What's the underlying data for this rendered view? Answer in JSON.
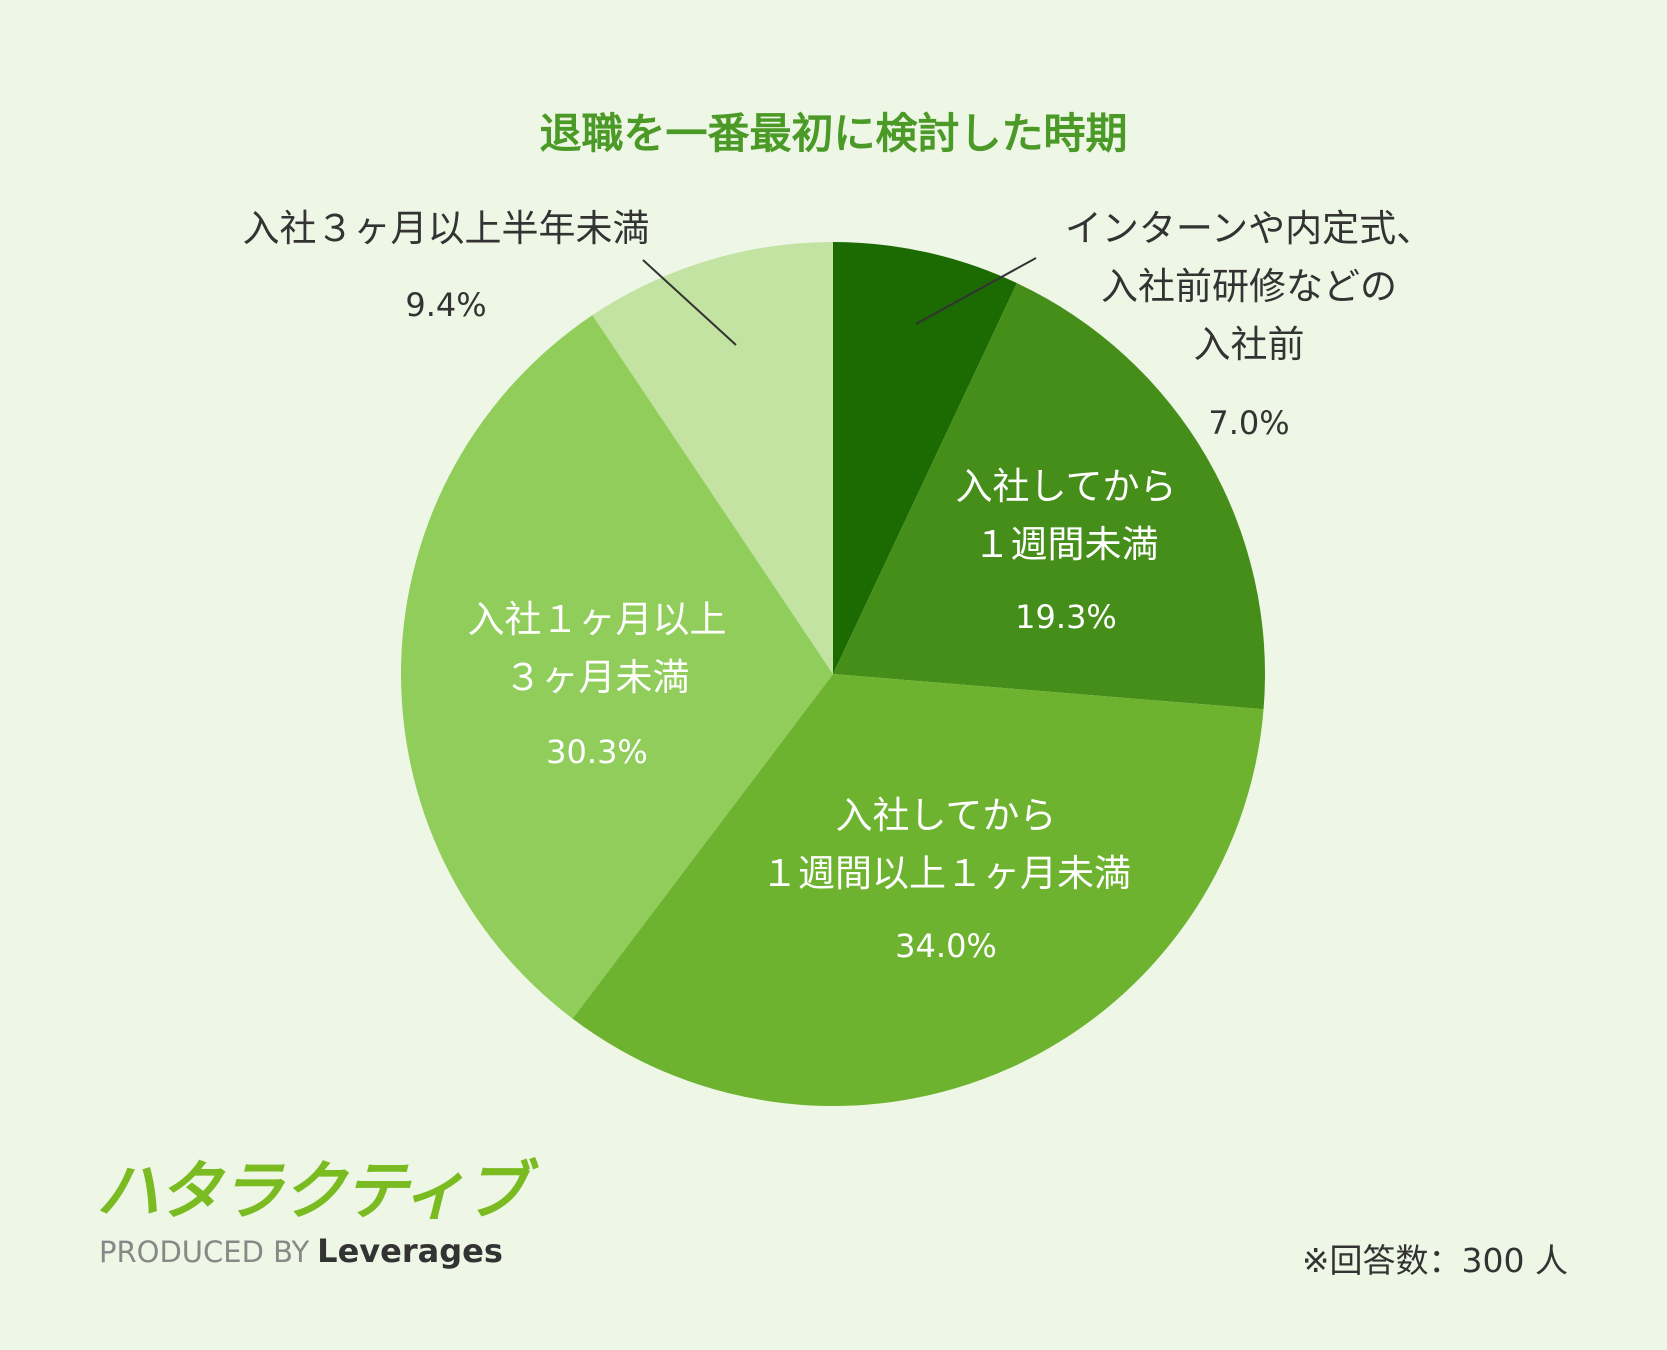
{
  "chart_data": {
    "type": "pie",
    "title": "退職を一番最初に検討した時期",
    "categories": [
      "インターンや内定式、\n入社前研修などの\n入社前",
      "入社してから\n１週間未満",
      "入社してから\n１週間以上１ヶ月未満",
      "入社１ヶ月以上\n３ヶ月未満",
      "入社３ヶ月以上半年未満"
    ],
    "values": [
      7.0,
      19.3,
      34.0,
      30.3,
      9.4
    ],
    "value_labels": [
      "7.0%",
      "19.3%",
      "34.0%",
      "30.3%",
      "9.4%"
    ],
    "colors": [
      "#1b6a02",
      "#468e1a",
      "#6db32f",
      "#90cd5a",
      "#c2e3a1"
    ],
    "note": "※回答数：300 人"
  },
  "footer": {
    "logo": "ハタラクティブ",
    "credit_prefix": "PRODUCED BY",
    "credit_brand": "Leverages"
  }
}
